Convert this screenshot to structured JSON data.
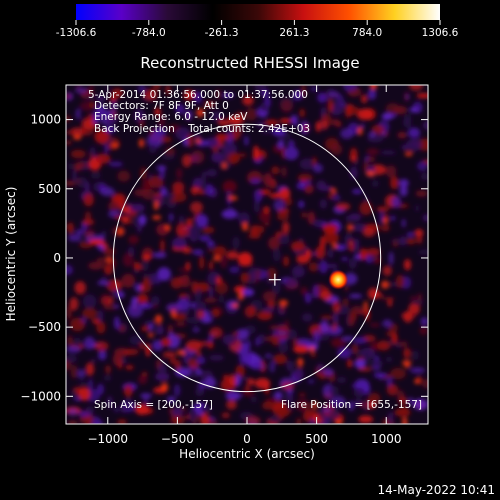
{
  "colorbar": {
    "ticks": [
      "-1306.6",
      "-784.0",
      "-261.3",
      "261.3",
      "784.0",
      "1306.6"
    ],
    "colors": [
      "#0000ff",
      "#5a00c8",
      "#2a0a38",
      "#000000",
      "#3a0808",
      "#c81010",
      "#ff5000",
      "#ffd020",
      "#ffffff"
    ]
  },
  "chart_data": {
    "type": "heatmap",
    "title": "Reconstructed RHESSI Image",
    "xlabel": "Heliocentric X (arcsec)",
    "ylabel": "Heliocentric Y (arcsec)",
    "xlim": [
      -1300,
      1300
    ],
    "ylim": [
      -1200,
      1250
    ],
    "xticks": [
      -1000,
      -500,
      0,
      500,
      1000
    ],
    "yticks": [
      -1000,
      -500,
      0,
      500,
      1000
    ],
    "xtick_labels": [
      "−1000",
      "−500",
      "0",
      "500",
      "1000"
    ],
    "ytick_labels": [
      "−1000",
      "−500",
      "0",
      "500",
      "1000"
    ],
    "annotations": [
      "5-Apr-2014 01:36:56.000 to 01:37:56.000",
      "Detectors: 7F 8F 9F, Att 0",
      "Energy Range: 6.0 - 12.0 keV",
      "Back Projection    Total counts: 2.42E+03"
    ],
    "footer_left": "Spin Axis = [200,-157]",
    "footer_right": "Flare Position = [655,-157]",
    "limb_radius_arcsec": 960,
    "spin_axis": [
      200,
      -157
    ],
    "flare_position": [
      655,
      -157
    ],
    "value_range": [
      -1306.6,
      1306.6
    ]
  },
  "timestamp": "14-May-2022 10:41"
}
